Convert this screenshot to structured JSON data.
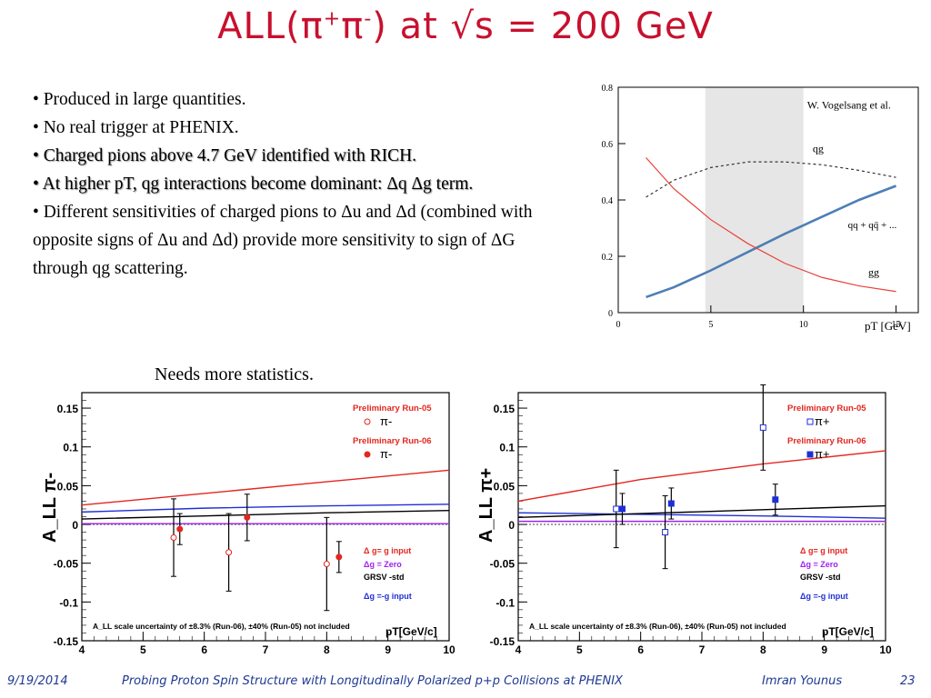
{
  "slide": {
    "title_main": "ALL(π",
    "title_sup1": "+",
    "title_mid": "π",
    "title_sup2": "-",
    "title_end": ") at √s = 200 GeV",
    "bullets": [
      {
        "text": "• Produced in large quantities.",
        "shadow": false
      },
      {
        "text": "• No real trigger at PHENIX.",
        "shadow": false
      },
      {
        "text": "• Charged pions above 4.7 GeV identified with RICH.",
        "shadow": true
      },
      {
        "text": "• At higher pT, qg interactions become dominant: Δq Δg term.",
        "shadow": true
      },
      {
        "text": "• Different sensitivities of charged pions to Δu and Δd (combined with opposite signs of Δu and Δd) provide more sensitivity to sign of ΔG through qg scattering.",
        "shadow": false
      }
    ],
    "needs_statistics": "Needs more statistics."
  },
  "footer": {
    "date": "9/19/2014",
    "talk_title": "Probing Proton Spin Structure with Longitudinally Polarized p+p Collisions at PHENIX",
    "author": "Imran Younus",
    "page": "23"
  },
  "chart_data": [
    {
      "type": "line",
      "annotation": "W. Vogelsang et al.",
      "xlabel": "pT [GeV]",
      "ylabel": "",
      "xlim": [
        0,
        16.2
      ],
      "ylim": [
        0,
        0.8
      ],
      "x_ticks": [
        "0",
        "5",
        "10",
        "15"
      ],
      "y_ticks": [
        "0",
        "0.2",
        "0.4",
        "0.6",
        "0.8"
      ],
      "shaded_band": [
        4.7,
        10
      ],
      "series": [
        {
          "name": "qg",
          "style": "dashed",
          "color": "#333333",
          "x": [
            1.5,
            3,
            5,
            7,
            9,
            11,
            13,
            15
          ],
          "y": [
            0.41,
            0.47,
            0.515,
            0.535,
            0.535,
            0.525,
            0.505,
            0.48
          ]
        },
        {
          "name": "qq + qq̄ + ...",
          "style": "solid",
          "color": "#4d7fb5",
          "x": [
            1.5,
            3,
            5,
            7,
            9,
            11,
            13,
            15
          ],
          "y": [
            0.055,
            0.09,
            0.15,
            0.215,
            0.28,
            0.34,
            0.4,
            0.45
          ]
        },
        {
          "name": "gg",
          "style": "solid",
          "color": "#e8403a",
          "x": [
            1.5,
            3,
            5,
            7,
            9,
            11,
            13,
            15
          ],
          "y": [
            0.55,
            0.44,
            0.33,
            0.245,
            0.175,
            0.125,
            0.095,
            0.075
          ]
        }
      ]
    },
    {
      "type": "scatter",
      "ylabel": "A_LL π-",
      "xlabel": "pT[GeV/c]",
      "xlim": [
        4,
        10
      ],
      "ylim": [
        -0.15,
        0.17
      ],
      "x_ticks": [
        "4",
        "5",
        "6",
        "7",
        "8",
        "9",
        "10"
      ],
      "y_ticks": [
        "-0.15",
        "-0.1",
        "-0.05",
        "0",
        "0.05",
        "0.1",
        "0.15"
      ],
      "legend_points": [
        {
          "label": "Preliminary Run-05",
          "symbol": "π-",
          "marker": "open-circle"
        },
        {
          "label": "Preliminary Run-06",
          "symbol": "π-",
          "marker": "filled-circle"
        }
      ],
      "legend_curves": [
        {
          "label": "Δ g= g input",
          "color": "#e3261f"
        },
        {
          "label": "Δg = Zero",
          "color": "#a020f0"
        },
        {
          "label": "GRSV -std",
          "color": "#000000"
        },
        {
          "label": "Δg =-g input",
          "color": "#1f2fd6"
        }
      ],
      "footnote": "A_LL scale uncertainty of ±8.3% (Run-06), ±40% (Run-05) not included",
      "points": [
        {
          "series": "Run-05",
          "x": 5.5,
          "y": -0.017,
          "err": 0.05
        },
        {
          "series": "Run-06",
          "x": 5.6,
          "y": -0.006,
          "err": 0.02
        },
        {
          "series": "Run-05",
          "x": 6.4,
          "y": -0.036,
          "err": 0.05
        },
        {
          "series": "Run-06",
          "x": 6.7,
          "y": 0.009,
          "err": 0.03
        },
        {
          "series": "Run-05",
          "x": 8.0,
          "y": -0.051,
          "err": 0.06
        },
        {
          "series": "Run-06",
          "x": 8.2,
          "y": -0.042,
          "err": 0.02
        }
      ],
      "curves": [
        {
          "name": "Δ g= g input",
          "color": "#e3261f",
          "x": [
            4,
            6,
            8,
            10
          ],
          "y": [
            0.025,
            0.04,
            0.055,
            0.07
          ]
        },
        {
          "name": "Δg =-g input",
          "color": "#1f2fd6",
          "x": [
            4,
            6,
            8,
            10
          ],
          "y": [
            0.016,
            0.021,
            0.024,
            0.026
          ]
        },
        {
          "name": "GRSV -std",
          "color": "#000000",
          "x": [
            4,
            6,
            8,
            10
          ],
          "y": [
            0.007,
            0.011,
            0.015,
            0.018
          ]
        },
        {
          "name": "Δg = Zero",
          "color": "#a020f0",
          "x": [
            4,
            6,
            8,
            10
          ],
          "y": [
            0.001,
            0.001,
            0.001,
            0.001
          ]
        }
      ]
    },
    {
      "type": "scatter",
      "ylabel": "A_LL π+",
      "xlabel": "pT[GeV/c]",
      "xlim": [
        4,
        10
      ],
      "ylim": [
        -0.15,
        0.17
      ],
      "x_ticks": [
        "4",
        "5",
        "6",
        "7",
        "8",
        "9",
        "10"
      ],
      "y_ticks": [
        "-0.15",
        "-0.1",
        "-0.05",
        "0",
        "0.05",
        "0.1",
        "0.15"
      ],
      "legend_points": [
        {
          "label": "Preliminary Run-05",
          "symbol": "π+",
          "marker": "open-square"
        },
        {
          "label": "Preliminary Run-06",
          "symbol": "π+",
          "marker": "filled-square"
        }
      ],
      "legend_curves": [
        {
          "label": "Δ g= g input",
          "color": "#e3261f"
        },
        {
          "label": "Δg = Zero",
          "color": "#a020f0"
        },
        {
          "label": "GRSV -std",
          "color": "#000000"
        },
        {
          "label": "Δg =-g input",
          "color": "#1f2fd6"
        }
      ],
      "footnote": "A_LL scale uncertainty of ±8.3% (Run-06), ±40% (Run-05) not included",
      "points": [
        {
          "series": "Run-05",
          "x": 5.6,
          "y": 0.02,
          "err": 0.05
        },
        {
          "series": "Run-06",
          "x": 5.7,
          "y": 0.02,
          "err": 0.02
        },
        {
          "series": "Run-05",
          "x": 6.4,
          "y": -0.01,
          "err": 0.047
        },
        {
          "series": "Run-06",
          "x": 6.5,
          "y": 0.027,
          "err": 0.02
        },
        {
          "series": "Run-05",
          "x": 8.0,
          "y": 0.125,
          "err": 0.055
        },
        {
          "series": "Run-06",
          "x": 8.2,
          "y": 0.032,
          "err": 0.02
        }
      ],
      "curves": [
        {
          "name": "Δ g= g input",
          "color": "#e3261f",
          "x": [
            4,
            6,
            8,
            10
          ],
          "y": [
            0.03,
            0.058,
            0.078,
            0.095
          ]
        },
        {
          "name": "Δg =-g input",
          "color": "#1f2fd6",
          "x": [
            4,
            6,
            8,
            10
          ],
          "y": [
            0.015,
            0.013,
            0.011,
            0.008
          ]
        },
        {
          "name": "GRSV -std",
          "color": "#000000",
          "x": [
            4,
            6,
            8,
            10
          ],
          "y": [
            0.009,
            0.014,
            0.019,
            0.024
          ]
        },
        {
          "name": "Δg = Zero",
          "color": "#a020f0",
          "x": [
            4,
            6,
            8,
            10
          ],
          "y": [
            0.004,
            0.004,
            0.004,
            0.004
          ]
        }
      ]
    }
  ]
}
